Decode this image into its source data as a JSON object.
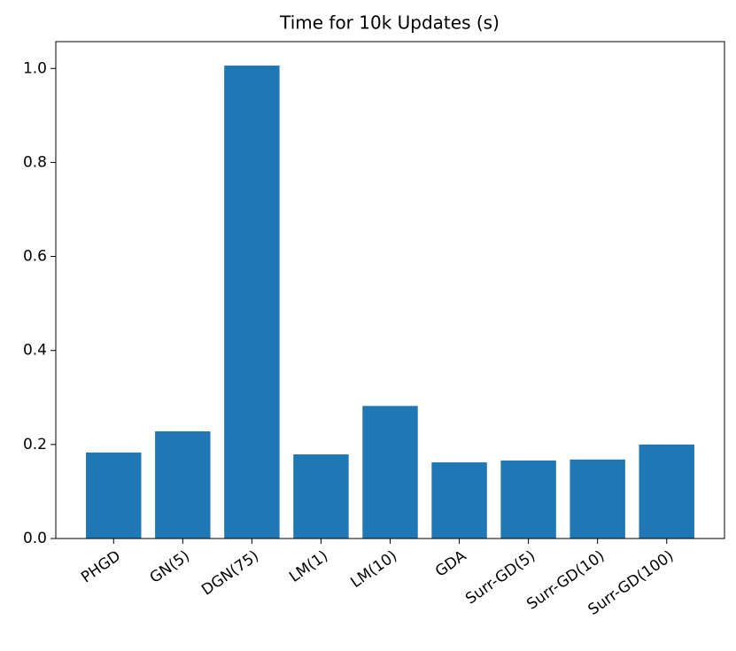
{
  "chart_data": {
    "type": "bar",
    "title": "Time for 10k Updates (s)",
    "categories": [
      "PHGD",
      "GN(5)",
      "DGN(75)",
      "LM(1)",
      "LM(10)",
      "GDA",
      "Surr-GD(5)",
      "Surr-GD(10)",
      "Surr-GD(100)"
    ],
    "values": [
      0.183,
      0.228,
      1.006,
      0.179,
      0.282,
      0.162,
      0.166,
      0.168,
      0.2
    ],
    "color": "#1f77b4",
    "ylim": [
      0,
      1.057
    ],
    "yticks": [
      {
        "value": 0,
        "label": "0.0"
      },
      0.2,
      0.4,
      0.6,
      0.8,
      {
        "value": 1,
        "label": "1.0"
      }
    ],
    "grid": false
  }
}
